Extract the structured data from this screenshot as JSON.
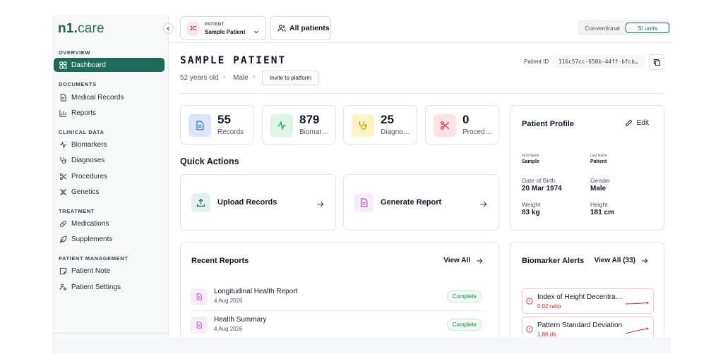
{
  "brand": {
    "n1": "n1",
    "dot": ".",
    "care": "care"
  },
  "sidebar": {
    "sections": [
      {
        "label": "OVERVIEW"
      },
      {
        "label": "DOCUMENTS"
      },
      {
        "label": "CLINICAL DATA"
      },
      {
        "label": "TREATMENT"
      },
      {
        "label": "PATIENT MANAGEMENT"
      }
    ],
    "items": [
      {
        "label": "Dashboard",
        "icon": "dashboard-icon",
        "active": true
      },
      {
        "label": "Medical Records",
        "icon": "document-icon"
      },
      {
        "label": "Reports",
        "icon": "bar-chart-icon"
      },
      {
        "label": "Biomarkers",
        "icon": "activity-icon"
      },
      {
        "label": "Diagnoses",
        "icon": "stethoscope-icon"
      },
      {
        "label": "Procedures",
        "icon": "scissors-icon"
      },
      {
        "label": "Genetics",
        "icon": "dna-icon"
      },
      {
        "label": "Medications",
        "icon": "pill-icon"
      },
      {
        "label": "Supplements",
        "icon": "leaf-icon"
      },
      {
        "label": "Patient Note",
        "icon": "note-icon"
      },
      {
        "label": "Patient Settings",
        "icon": "user-settings-icon"
      }
    ]
  },
  "header": {
    "patient_select": {
      "initials": "JC",
      "caption": "PATIENT",
      "name": "Sample Patient"
    },
    "all_patients_label": "All patients",
    "units": {
      "conventional": "Conventional",
      "si": "SI units",
      "selected": "SI units"
    }
  },
  "patient": {
    "title": "SAMPLE PATIENT",
    "age": "52 years old",
    "sex": "Male",
    "invite_label": "Invite to platform",
    "id_label": "Patient ID",
    "id_value": "116c57cc-650b-44ff-bfcb…"
  },
  "stats": [
    {
      "value": "55",
      "label": "Records",
      "icon": "document-icon",
      "color": "#dbe6fb",
      "icon_color": "#3b6fd8"
    },
    {
      "value": "879",
      "label": "Biomarkers",
      "icon": "activity-icon",
      "color": "#dcf5e4",
      "icon_color": "#22a05a"
    },
    {
      "value": "25",
      "label": "Diagnoses",
      "icon": "stethoscope-icon",
      "color": "#fdf3c4",
      "icon_color": "#c9a100"
    },
    {
      "value": "0",
      "label": "Procedures",
      "icon": "scissors-icon",
      "color": "#fde2e4",
      "icon_color": "#d8394a"
    }
  ],
  "quick_actions": {
    "title": "Quick Actions",
    "items": [
      {
        "label": "Upload Records",
        "icon": "upload-icon"
      },
      {
        "label": "Generate Report",
        "icon": "report-icon"
      }
    ]
  },
  "profile": {
    "title": "Patient Profile",
    "edit_label": "Edit",
    "first_name_label": "First Name",
    "first_name": "Sample",
    "last_name_label": "Last Name",
    "last_name": "Patient",
    "dob_label": "Date of Birth",
    "dob": "20 Mar 1974",
    "gender_label": "Gender",
    "gender": "Male",
    "weight_label": "Weight",
    "weight": "83 kg",
    "height_label": "Height",
    "height": "181 cm"
  },
  "recent_reports": {
    "title": "Recent Reports",
    "view_all": "View All",
    "items": [
      {
        "name": "Longitudinal Health Report",
        "date": "4 Aug 2026",
        "status": "Complete"
      },
      {
        "name": "Health Summary",
        "date": "4 Aug 2026",
        "status": "Complete"
      }
    ]
  },
  "biomarker_alerts": {
    "title": "Biomarker Alerts",
    "view_all": "View All (33)",
    "items": [
      {
        "name": "Index of Height Decentration",
        "value": "0.02 ratio"
      },
      {
        "name": "Pattern Standard Deviation",
        "value": "1.86 db"
      }
    ]
  },
  "colors": {
    "accent": "#1f6b5a",
    "alert_red": "#dc2626",
    "status_green": "#1f7a4c"
  }
}
